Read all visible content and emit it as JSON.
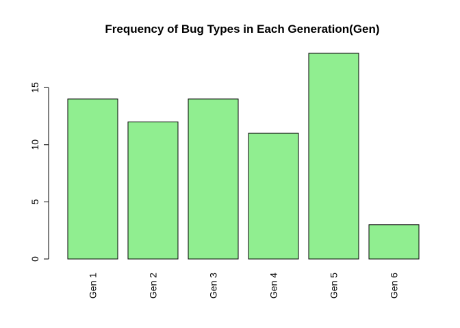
{
  "chart_data": {
    "type": "bar",
    "title": "Frequency of Bug Types in Each Generation(Gen)",
    "xlabel": "",
    "ylabel": "",
    "categories": [
      "Gen 1",
      "Gen 2",
      "Gen 3",
      "Gen 4",
      "Gen 5",
      "Gen 6"
    ],
    "values": [
      14,
      12,
      14,
      11,
      18,
      3
    ],
    "yticks": [
      0,
      5,
      10,
      15
    ],
    "ylim": [
      0,
      18
    ],
    "bar_color": "#90ee90",
    "border_color": "#000000",
    "grid": false,
    "x_tick_labels_rotated": true
  }
}
